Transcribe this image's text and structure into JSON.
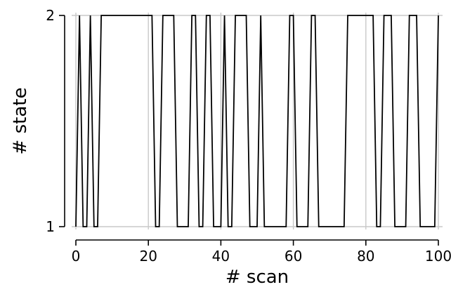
{
  "chart_data": {
    "type": "line",
    "title": "",
    "xlabel": "# scan",
    "ylabel": "# state",
    "xlim": [
      0,
      100
    ],
    "ylim": [
      1,
      2
    ],
    "xticks": [
      0,
      20,
      40,
      60,
      80,
      100
    ],
    "yticks": [
      1,
      2
    ],
    "grid": true,
    "line_color": "#000000",
    "grid_color": "#c8c8c8",
    "x": [
      0,
      1,
      2,
      3,
      4,
      5,
      6,
      7,
      8,
      9,
      10,
      11,
      12,
      13,
      14,
      15,
      16,
      17,
      18,
      19,
      20,
      21,
      22,
      23,
      24,
      25,
      26,
      27,
      28,
      29,
      30,
      31,
      32,
      33,
      34,
      35,
      36,
      37,
      38,
      39,
      40,
      41,
      42,
      43,
      44,
      45,
      46,
      47,
      48,
      49,
      50,
      51,
      52,
      53,
      54,
      55,
      56,
      57,
      58,
      59,
      60,
      61,
      62,
      63,
      64,
      65,
      66,
      67,
      68,
      69,
      70,
      71,
      72,
      73,
      74,
      75,
      76,
      77,
      78,
      79,
      80,
      81,
      82,
      83,
      84,
      85,
      86,
      87,
      88,
      89,
      90,
      91,
      92,
      93,
      94,
      95,
      96,
      97,
      98,
      99,
      100
    ],
    "series": [
      {
        "values": [
          1,
          2,
          1,
          1,
          2,
          1,
          1,
          2,
          2,
          2,
          2,
          2,
          2,
          2,
          2,
          2,
          2,
          2,
          2,
          2,
          2,
          2,
          1,
          1,
          2,
          2,
          2,
          2,
          1,
          1,
          1,
          1,
          2,
          2,
          1,
          1,
          2,
          2,
          1,
          1,
          1,
          2,
          1,
          1,
          2,
          2,
          2,
          2,
          1,
          1,
          1,
          2,
          1,
          1,
          1,
          1,
          1,
          1,
          1,
          2,
          2,
          1,
          1,
          1,
          1,
          2,
          2,
          1,
          1,
          1,
          1,
          1,
          1,
          1,
          1,
          2,
          2,
          2,
          2,
          2,
          2,
          2,
          2,
          1,
          1,
          2,
          2,
          2,
          1,
          1,
          1,
          1,
          2,
          2,
          2,
          1,
          1,
          1,
          1,
          1,
          2
        ]
      }
    ]
  }
}
